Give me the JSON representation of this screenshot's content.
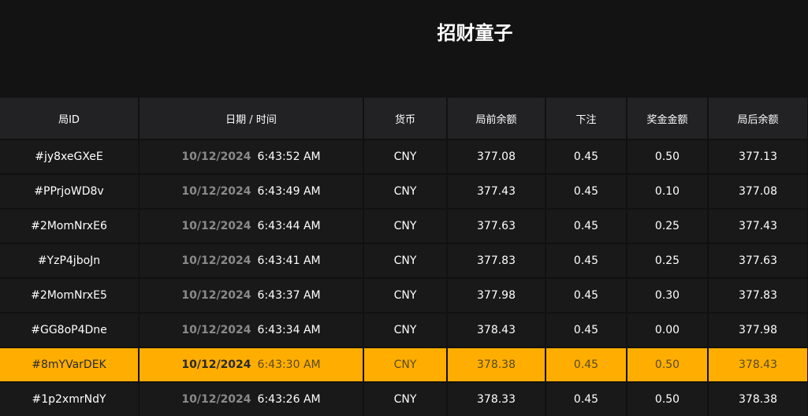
{
  "header": {
    "subtitle": "招财童子"
  },
  "table": {
    "headers": [
      "局ID",
      "日期 / 时间",
      "货币",
      "局前余额",
      "下注",
      "奖金金额",
      "局后余额"
    ],
    "highlight_row": 6,
    "rows": [
      [
        "#jy8xeGXeE",
        "10/12/2024",
        "6:43:52 AM",
        "CNY",
        "377.08",
        "0.45",
        "0.50",
        "377.13"
      ],
      [
        "#PPrjoWD8v",
        "10/12/2024",
        "6:43:49 AM",
        "CNY",
        "377.43",
        "0.45",
        "0.10",
        "377.08"
      ],
      [
        "#2MomNrxE6",
        "10/12/2024",
        "6:43:44 AM",
        "CNY",
        "377.63",
        "0.45",
        "0.25",
        "377.43"
      ],
      [
        "#YzP4jboJn",
        "10/12/2024",
        "6:43:41 AM",
        "CNY",
        "377.83",
        "0.45",
        "0.25",
        "377.63"
      ],
      [
        "#2MomNrxE5",
        "10/12/2024",
        "6:43:37 AM",
        "CNY",
        "377.98",
        "0.45",
        "0.30",
        "377.83"
      ],
      [
        "#GG8oP4Dne",
        "10/12/2024",
        "6:43:34 AM",
        "CNY",
        "378.43",
        "0.45",
        "0.00",
        "377.98"
      ],
      [
        "#8mYVarDEK",
        "10/12/2024",
        "6:43:30 AM",
        "CNY",
        "378.38",
        "0.45",
        "0.50",
        "378.43"
      ],
      [
        "#1p2xmrNdY",
        "10/12/2024",
        "6:43:26 AM",
        "CNY",
        "378.33",
        "0.45",
        "0.50",
        "378.38"
      ]
    ]
  }
}
